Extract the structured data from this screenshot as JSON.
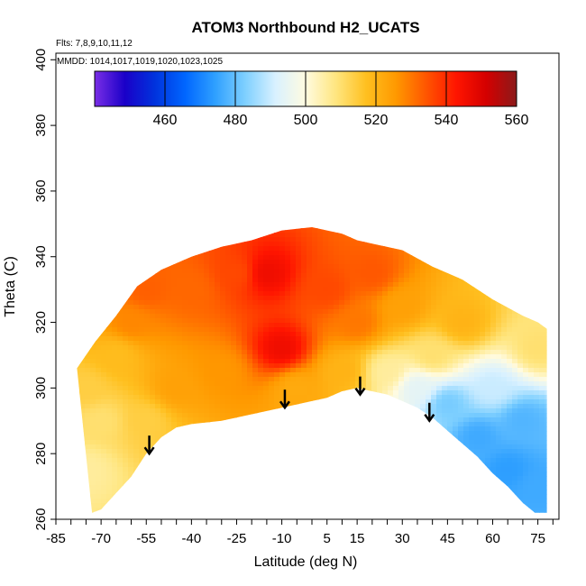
{
  "chart_data": {
    "type": "heatmap",
    "title": "ATOM3 Northbound H2_UCATS",
    "flights_note": "Flts: 7,8,9,10,11,12",
    "dates_note": "MMDD: 1014,1017,1019,1020,1023,1025",
    "xlabel": "Latitude (deg N)",
    "ylabel": "Theta (C)",
    "xlim": [
      -85,
      82
    ],
    "ylim": [
      260,
      402
    ],
    "x_tick_labels": [
      "-85",
      "-70",
      "-55",
      "-40",
      "-25",
      "-10",
      "5",
      "15",
      "30",
      "45",
      "60",
      "75"
    ],
    "x_tick_values": [
      -85,
      -70,
      -55,
      -40,
      -25,
      -10,
      5,
      15,
      30,
      45,
      60,
      75
    ],
    "y_tick_labels": [
      "260",
      "280",
      "300",
      "320",
      "340",
      "360",
      "380",
      "400"
    ],
    "y_tick_values": [
      260,
      280,
      300,
      320,
      340,
      360,
      380,
      400
    ],
    "colorbar": {
      "min": 440,
      "max": 560,
      "tick_labels": [
        "460",
        "480",
        "500",
        "520",
        "540",
        "560"
      ],
      "tick_values": [
        460,
        480,
        500,
        520,
        540,
        560
      ],
      "colors": [
        "#7a2ee6",
        "#1a00c8",
        "#0033dd",
        "#0066ff",
        "#2fa0ff",
        "#7fd0ff",
        "#d9f1ff",
        "#fffbe0",
        "#ffe680",
        "#ffc020",
        "#ff9900",
        "#ff5500",
        "#ff1500",
        "#d40000",
        "#8b1a1a"
      ]
    },
    "boundary_bottom": [
      [
        -73,
        262
      ],
      [
        -70,
        263
      ],
      [
        -65,
        268
      ],
      [
        -60,
        273
      ],
      [
        -55,
        280
      ],
      [
        -50,
        285
      ],
      [
        -45,
        288
      ],
      [
        -40,
        289
      ],
      [
        -30,
        290
      ],
      [
        -20,
        292
      ],
      [
        -10,
        294
      ],
      [
        0,
        296
      ],
      [
        5,
        297
      ],
      [
        10,
        299
      ],
      [
        15,
        300
      ],
      [
        20,
        299
      ],
      [
        25,
        298
      ],
      [
        30,
        296
      ],
      [
        35,
        294
      ],
      [
        40,
        291
      ],
      [
        45,
        287
      ],
      [
        50,
        283
      ],
      [
        55,
        279
      ],
      [
        60,
        274
      ],
      [
        65,
        270
      ],
      [
        70,
        265
      ],
      [
        74,
        262
      ],
      [
        78,
        262
      ]
    ],
    "boundary_top": [
      [
        -78,
        306
      ],
      [
        -72,
        314
      ],
      [
        -65,
        322
      ],
      [
        -58,
        331
      ],
      [
        -50,
        336
      ],
      [
        -40,
        340
      ],
      [
        -30,
        343
      ],
      [
        -20,
        345
      ],
      [
        -10,
        348
      ],
      [
        0,
        349
      ],
      [
        5,
        348
      ],
      [
        10,
        347
      ],
      [
        15,
        345
      ],
      [
        20,
        344
      ],
      [
        30,
        342
      ],
      [
        40,
        337
      ],
      [
        50,
        333
      ],
      [
        60,
        327
      ],
      [
        70,
        322
      ],
      [
        75,
        320
      ],
      [
        78,
        318
      ]
    ],
    "field_anchors": [
      {
        "lat": -75,
        "theta": 275,
        "value": 506
      },
      {
        "lat": -75,
        "theta": 300,
        "value": 514
      },
      {
        "lat": -70,
        "theta": 290,
        "value": 510
      },
      {
        "lat": -65,
        "theta": 310,
        "value": 518
      },
      {
        "lat": -60,
        "theta": 320,
        "value": 528
      },
      {
        "lat": -55,
        "theta": 290,
        "value": 514
      },
      {
        "lat": -55,
        "theta": 330,
        "value": 533
      },
      {
        "lat": -45,
        "theta": 300,
        "value": 524
      },
      {
        "lat": -40,
        "theta": 330,
        "value": 532
      },
      {
        "lat": -30,
        "theta": 305,
        "value": 526
      },
      {
        "lat": -25,
        "theta": 335,
        "value": 536
      },
      {
        "lat": -15,
        "theta": 335,
        "value": 546
      },
      {
        "lat": -10,
        "theta": 312,
        "value": 546
      },
      {
        "lat": -5,
        "theta": 300,
        "value": 522
      },
      {
        "lat": 5,
        "theta": 330,
        "value": 536
      },
      {
        "lat": 10,
        "theta": 305,
        "value": 520
      },
      {
        "lat": 15,
        "theta": 320,
        "value": 530
      },
      {
        "lat": 20,
        "theta": 335,
        "value": 534
      },
      {
        "lat": 25,
        "theta": 305,
        "value": 506
      },
      {
        "lat": 30,
        "theta": 325,
        "value": 524
      },
      {
        "lat": 35,
        "theta": 300,
        "value": 494
      },
      {
        "lat": 40,
        "theta": 310,
        "value": 510
      },
      {
        "lat": 45,
        "theta": 295,
        "value": 482
      },
      {
        "lat": 50,
        "theta": 320,
        "value": 520
      },
      {
        "lat": 55,
        "theta": 285,
        "value": 476
      },
      {
        "lat": 60,
        "theta": 300,
        "value": 490
      },
      {
        "lat": 65,
        "theta": 275,
        "value": 474
      },
      {
        "lat": 70,
        "theta": 290,
        "value": 478
      },
      {
        "lat": 75,
        "theta": 270,
        "value": 476
      },
      {
        "lat": 75,
        "theta": 312,
        "value": 510
      }
    ],
    "arrows": [
      {
        "lat": -54,
        "theta": 280
      },
      {
        "lat": -9,
        "theta": 294
      },
      {
        "lat": 16,
        "theta": 298
      },
      {
        "lat": 39,
        "theta": 290
      }
    ]
  }
}
